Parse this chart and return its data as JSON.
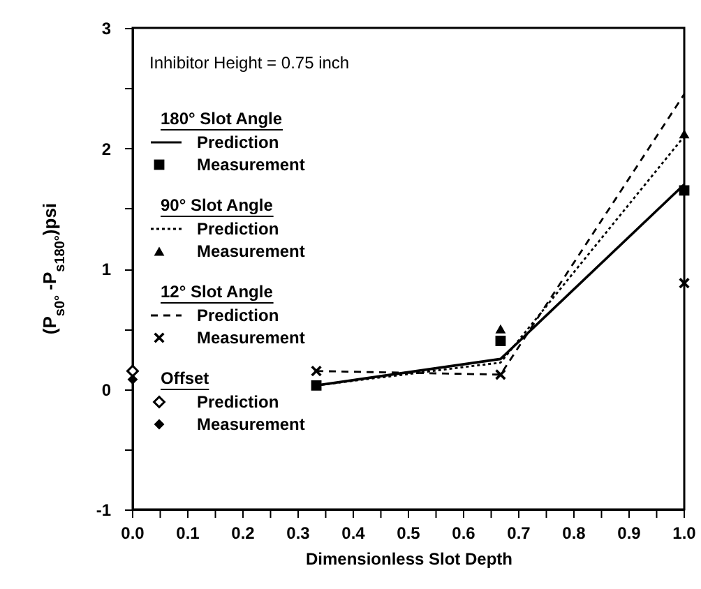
{
  "chart_data": {
    "type": "line",
    "xlabel": "Dimensionless Slot Depth",
    "ylabel": "(P$_{s0°}$ -P$_{s180°}$)psi",
    "annotations": [
      "Inhibitor Height = 0.75 inch",
      "180° Slot Angle",
      "90° Slot Angle",
      "12° Slot Angle",
      "Offset"
    ],
    "series": [
      {
        "name": "Prediction",
        "color": "#000000",
        "line_style": "solid",
        "marker": "none",
        "x": [
          0.333,
          0.667,
          1.0
        ],
        "values": [
          0.03,
          0.25,
          1.7
        ]
      },
      {
        "name": "Measurement",
        "type": "scatter",
        "color": "#000000",
        "marker": "square",
        "x": [
          0.333,
          0.667,
          1.0
        ],
        "values": [
          0.03,
          0.4,
          1.65
        ]
      },
      {
        "name": "Prediction",
        "color": "#000000",
        "line_style": "dotted",
        "marker": "none",
        "x": [
          0.333,
          0.667,
          1.0
        ],
        "values": [
          0.03,
          0.22,
          2.1
        ]
      },
      {
        "name": "Measurement",
        "type": "scatter",
        "color": "#000000",
        "marker": "triangle",
        "x": [
          0.667,
          1.0
        ],
        "values": [
          0.5,
          2.12
        ]
      },
      {
        "name": "Prediction",
        "color": "#000000",
        "line_style": "dashed",
        "marker": "none",
        "x": [
          0.333,
          0.667,
          1.0
        ],
        "values": [
          0.15,
          0.12,
          2.45
        ]
      },
      {
        "name": "Measurement",
        "type": "scatter",
        "color": "#000000",
        "marker": "cross",
        "x": [
          0.333,
          0.667,
          1.0
        ],
        "values": [
          0.15,
          0.12,
          0.88
        ]
      },
      {
        "name": "Prediction",
        "color": "#000000",
        "line_style": "solid",
        "marker": "diamond",
        "x": [
          0.0
        ],
        "values": [
          0.15
        ]
      },
      {
        "name": "Measurement",
        "type": "scatter",
        "color": "#000000",
        "marker": "diamond",
        "x": [
          0.0
        ],
        "values": [
          0.08
        ]
      }
    ],
    "xlim": [
      0,
      1
    ],
    "ylim": [
      -1,
      3
    ],
    "xticks": [
      {
        "value": 0,
        "label": "0.0"
      },
      {
        "value": 0.05,
        "label": null
      },
      {
        "value": 0.1,
        "label": "0.1"
      },
      {
        "value": 0.15,
        "label": null
      },
      {
        "value": 0.2,
        "label": "0.2"
      },
      {
        "value": 0.25,
        "label": null
      },
      {
        "value": 0.3,
        "label": "0.3"
      },
      {
        "value": 0.35,
        "label": null
      },
      {
        "value": 0.4,
        "label": "0.4"
      },
      {
        "value": 0.45,
        "label": null
      },
      {
        "value": 0.5,
        "label": "0.5"
      },
      {
        "value": 0.55,
        "label": null
      },
      {
        "value": 0.6,
        "label": "0.6"
      },
      {
        "value": 0.65,
        "label": null
      },
      {
        "value": 0.7,
        "label": "0.7"
      },
      {
        "value": 0.75,
        "label": null
      },
      {
        "value": 0.8,
        "label": "0.8"
      },
      {
        "value": 0.85,
        "label": null
      },
      {
        "value": 0.9,
        "label": "0.9"
      },
      {
        "value": 0.95,
        "label": null
      },
      {
        "value": 1,
        "label": "1.0"
      }
    ],
    "yticks": [
      -1,
      {
        "value": -0.5,
        "label": null
      },
      0,
      {
        "value": 0.5,
        "label": null
      },
      1,
      {
        "value": 1.5,
        "label": null
      },
      2,
      {
        "value": 2.5,
        "label": null
      },
      3
    ],
    "grid": false,
    "legend": "left"
  }
}
